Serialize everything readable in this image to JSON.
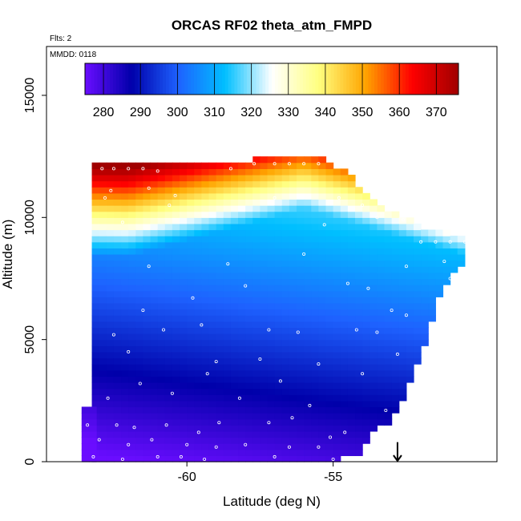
{
  "chart_data": {
    "type": "heatmap",
    "title": "ORCAS RF02 theta_atm_FMPD",
    "notes": {
      "flights": "Flts: 2",
      "date": "MMDD: 0118"
    },
    "xlabel": "Latitude (deg N)",
    "ylabel": "Altitude (m)",
    "xlim": [
      -64.8,
      -49.4
    ],
    "ylim": [
      0,
      17000
    ],
    "x_ticks": [
      -60,
      -55
    ],
    "x_tick_labels": [
      "-60",
      "-55"
    ],
    "y_ticks": [
      0,
      5000,
      10000,
      15000
    ],
    "y_tick_labels": [
      "0",
      "5000",
      "10000",
      "15000"
    ],
    "colorbar": {
      "placement": "top-inside",
      "range": [
        275,
        376
      ],
      "ticks": [
        280,
        290,
        300,
        310,
        320,
        330,
        340,
        350,
        360,
        370
      ],
      "tick_labels": [
        "280",
        "290",
        "300",
        "310",
        "320",
        "330",
        "340",
        "350",
        "360",
        "370"
      ],
      "colors": [
        "#6a0dff",
        "#0000aa",
        "#1e62ff",
        "#00bfff",
        "#ffffff",
        "#ffff80",
        "#ffa500",
        "#ff0000",
        "#a00000"
      ]
    },
    "field_description": "potential temperature (K) versus latitude and altitude; roughly 275-285 K near surface, ~300-310 K in mid troposphere, rising sharply above ~10000 m to ~370 K at ~12000 m",
    "domain": {
      "lat_start": -63.25,
      "lat_end": -50.7,
      "lat_step": 0.25,
      "alt_step": 250,
      "top_altitude_profile": [
        {
          "lat": -63.25,
          "alt": 12000
        },
        {
          "lat": -62.8,
          "alt": 12200
        },
        {
          "lat": -58.0,
          "alt": 12200
        },
        {
          "lat": -57.5,
          "alt": 12400
        },
        {
          "lat": -55.5,
          "alt": 12400
        },
        {
          "lat": -55.0,
          "alt": 12000
        },
        {
          "lat": -54.5,
          "alt": 11700
        },
        {
          "lat": -53.5,
          "alt": 10500
        },
        {
          "lat": -52.3,
          "alt": 9700
        },
        {
          "lat": -51.5,
          "alt": 9300
        },
        {
          "lat": -50.7,
          "alt": 9200
        }
      ],
      "bottom_altitude_profile": [
        {
          "lat": -63.25,
          "alt": 0
        },
        {
          "lat": -55.0,
          "alt": 0
        },
        {
          "lat": -54.6,
          "alt": 300
        },
        {
          "lat": -54.0,
          "alt": 500
        },
        {
          "lat": -53.5,
          "alt": 1500
        },
        {
          "lat": -53.0,
          "alt": 1800
        },
        {
          "lat": -52.6,
          "alt": 2800
        },
        {
          "lat": -52.2,
          "alt": 4000
        },
        {
          "lat": -51.8,
          "alt": 5000
        },
        {
          "lat": -51.5,
          "alt": 6500
        },
        {
          "lat": -51.0,
          "alt": 7500
        },
        {
          "lat": -50.7,
          "alt": 8200
        }
      ],
      "lower_left_extension": {
        "lat_start": -63.6,
        "lat_end": -58.8,
        "alt_top": 2200
      }
    },
    "observation_points": [
      {
        "x": -62.9,
        "y": 12000
      },
      {
        "x": -62.5,
        "y": 12000
      },
      {
        "x": -62.0,
        "y": 12000
      },
      {
        "x": -61.5,
        "y": 12000
      },
      {
        "x": -61.0,
        "y": 11900
      },
      {
        "x": -58.5,
        "y": 12000
      },
      {
        "x": -57.7,
        "y": 12200
      },
      {
        "x": -57.0,
        "y": 12200
      },
      {
        "x": -56.5,
        "y": 12200
      },
      {
        "x": -56.0,
        "y": 12200
      },
      {
        "x": -55.5,
        "y": 12200
      },
      {
        "x": -62.6,
        "y": 11100
      },
      {
        "x": -61.3,
        "y": 11200
      },
      {
        "x": -60.4,
        "y": 10900
      },
      {
        "x": -57.0,
        "y": 10800
      },
      {
        "x": -54.8,
        "y": 10800
      },
      {
        "x": -54.0,
        "y": 10500
      },
      {
        "x": -62.8,
        "y": 10800
      },
      {
        "x": -60.6,
        "y": 10500
      },
      {
        "x": -53.5,
        "y": 10000
      },
      {
        "x": -52.6,
        "y": 9900
      },
      {
        "x": -62.2,
        "y": 9800
      },
      {
        "x": -55.3,
        "y": 9700
      },
      {
        "x": -52.0,
        "y": 9000
      },
      {
        "x": -51.5,
        "y": 9000
      },
      {
        "x": -51.0,
        "y": 9000
      },
      {
        "x": -50.5,
        "y": 9000
      },
      {
        "x": -61.3,
        "y": 8000
      },
      {
        "x": -58.6,
        "y": 8100
      },
      {
        "x": -56.0,
        "y": 8500
      },
      {
        "x": -52.5,
        "y": 8000
      },
      {
        "x": -51.2,
        "y": 8200
      },
      {
        "x": -58.0,
        "y": 7200
      },
      {
        "x": -54.5,
        "y": 7300
      },
      {
        "x": -53.8,
        "y": 7100
      },
      {
        "x": -51.0,
        "y": 7500
      },
      {
        "x": -62.5,
        "y": 5200
      },
      {
        "x": -60.8,
        "y": 5400
      },
      {
        "x": -59.5,
        "y": 5600
      },
      {
        "x": -57.2,
        "y": 5400
      },
      {
        "x": -56.2,
        "y": 5300
      },
      {
        "x": -54.2,
        "y": 5400
      },
      {
        "x": -53.5,
        "y": 5300
      },
      {
        "x": -61.5,
        "y": 6200
      },
      {
        "x": -59.8,
        "y": 6700
      },
      {
        "x": -53.0,
        "y": 6200
      },
      {
        "x": -52.5,
        "y": 6000
      },
      {
        "x": -51.5,
        "y": 5600
      },
      {
        "x": -62.0,
        "y": 4500
      },
      {
        "x": -59.0,
        "y": 4100
      },
      {
        "x": -57.5,
        "y": 4200
      },
      {
        "x": -55.5,
        "y": 4000
      },
      {
        "x": -52.8,
        "y": 4400
      },
      {
        "x": -52.0,
        "y": 3900
      },
      {
        "x": -61.6,
        "y": 3200
      },
      {
        "x": -59.3,
        "y": 3600
      },
      {
        "x": -56.8,
        "y": 3300
      },
      {
        "x": -54.0,
        "y": 3600
      },
      {
        "x": -51.8,
        "y": 3000
      },
      {
        "x": -62.7,
        "y": 2600
      },
      {
        "x": -60.5,
        "y": 2800
      },
      {
        "x": -58.2,
        "y": 2600
      },
      {
        "x": -55.8,
        "y": 2300
      },
      {
        "x": -53.2,
        "y": 2100
      },
      {
        "x": -63.4,
        "y": 1500
      },
      {
        "x": -62.4,
        "y": 1500
      },
      {
        "x": -61.8,
        "y": 1400
      },
      {
        "x": -60.7,
        "y": 1500
      },
      {
        "x": -59.6,
        "y": 1200
      },
      {
        "x": -58.9,
        "y": 1600
      },
      {
        "x": -57.2,
        "y": 1600
      },
      {
        "x": -56.4,
        "y": 1800
      },
      {
        "x": -55.1,
        "y": 1000
      },
      {
        "x": -54.6,
        "y": 1200
      },
      {
        "x": -63.0,
        "y": 900
      },
      {
        "x": -62.0,
        "y": 700
      },
      {
        "x": -61.2,
        "y": 900
      },
      {
        "x": -60.0,
        "y": 700
      },
      {
        "x": -59.0,
        "y": 600
      },
      {
        "x": -58.0,
        "y": 700
      },
      {
        "x": -56.5,
        "y": 600
      },
      {
        "x": -55.5,
        "y": 600
      },
      {
        "x": -63.2,
        "y": 200
      },
      {
        "x": -62.2,
        "y": 100
      },
      {
        "x": -61.0,
        "y": 200
      },
      {
        "x": -60.2,
        "y": 200
      },
      {
        "x": -59.4,
        "y": 100
      },
      {
        "x": -57.0,
        "y": 200
      },
      {
        "x": -55.0,
        "y": 100
      }
    ],
    "arrow_marker": {
      "x": -52.8,
      "y_from": 800,
      "y_to": 0
    }
  }
}
